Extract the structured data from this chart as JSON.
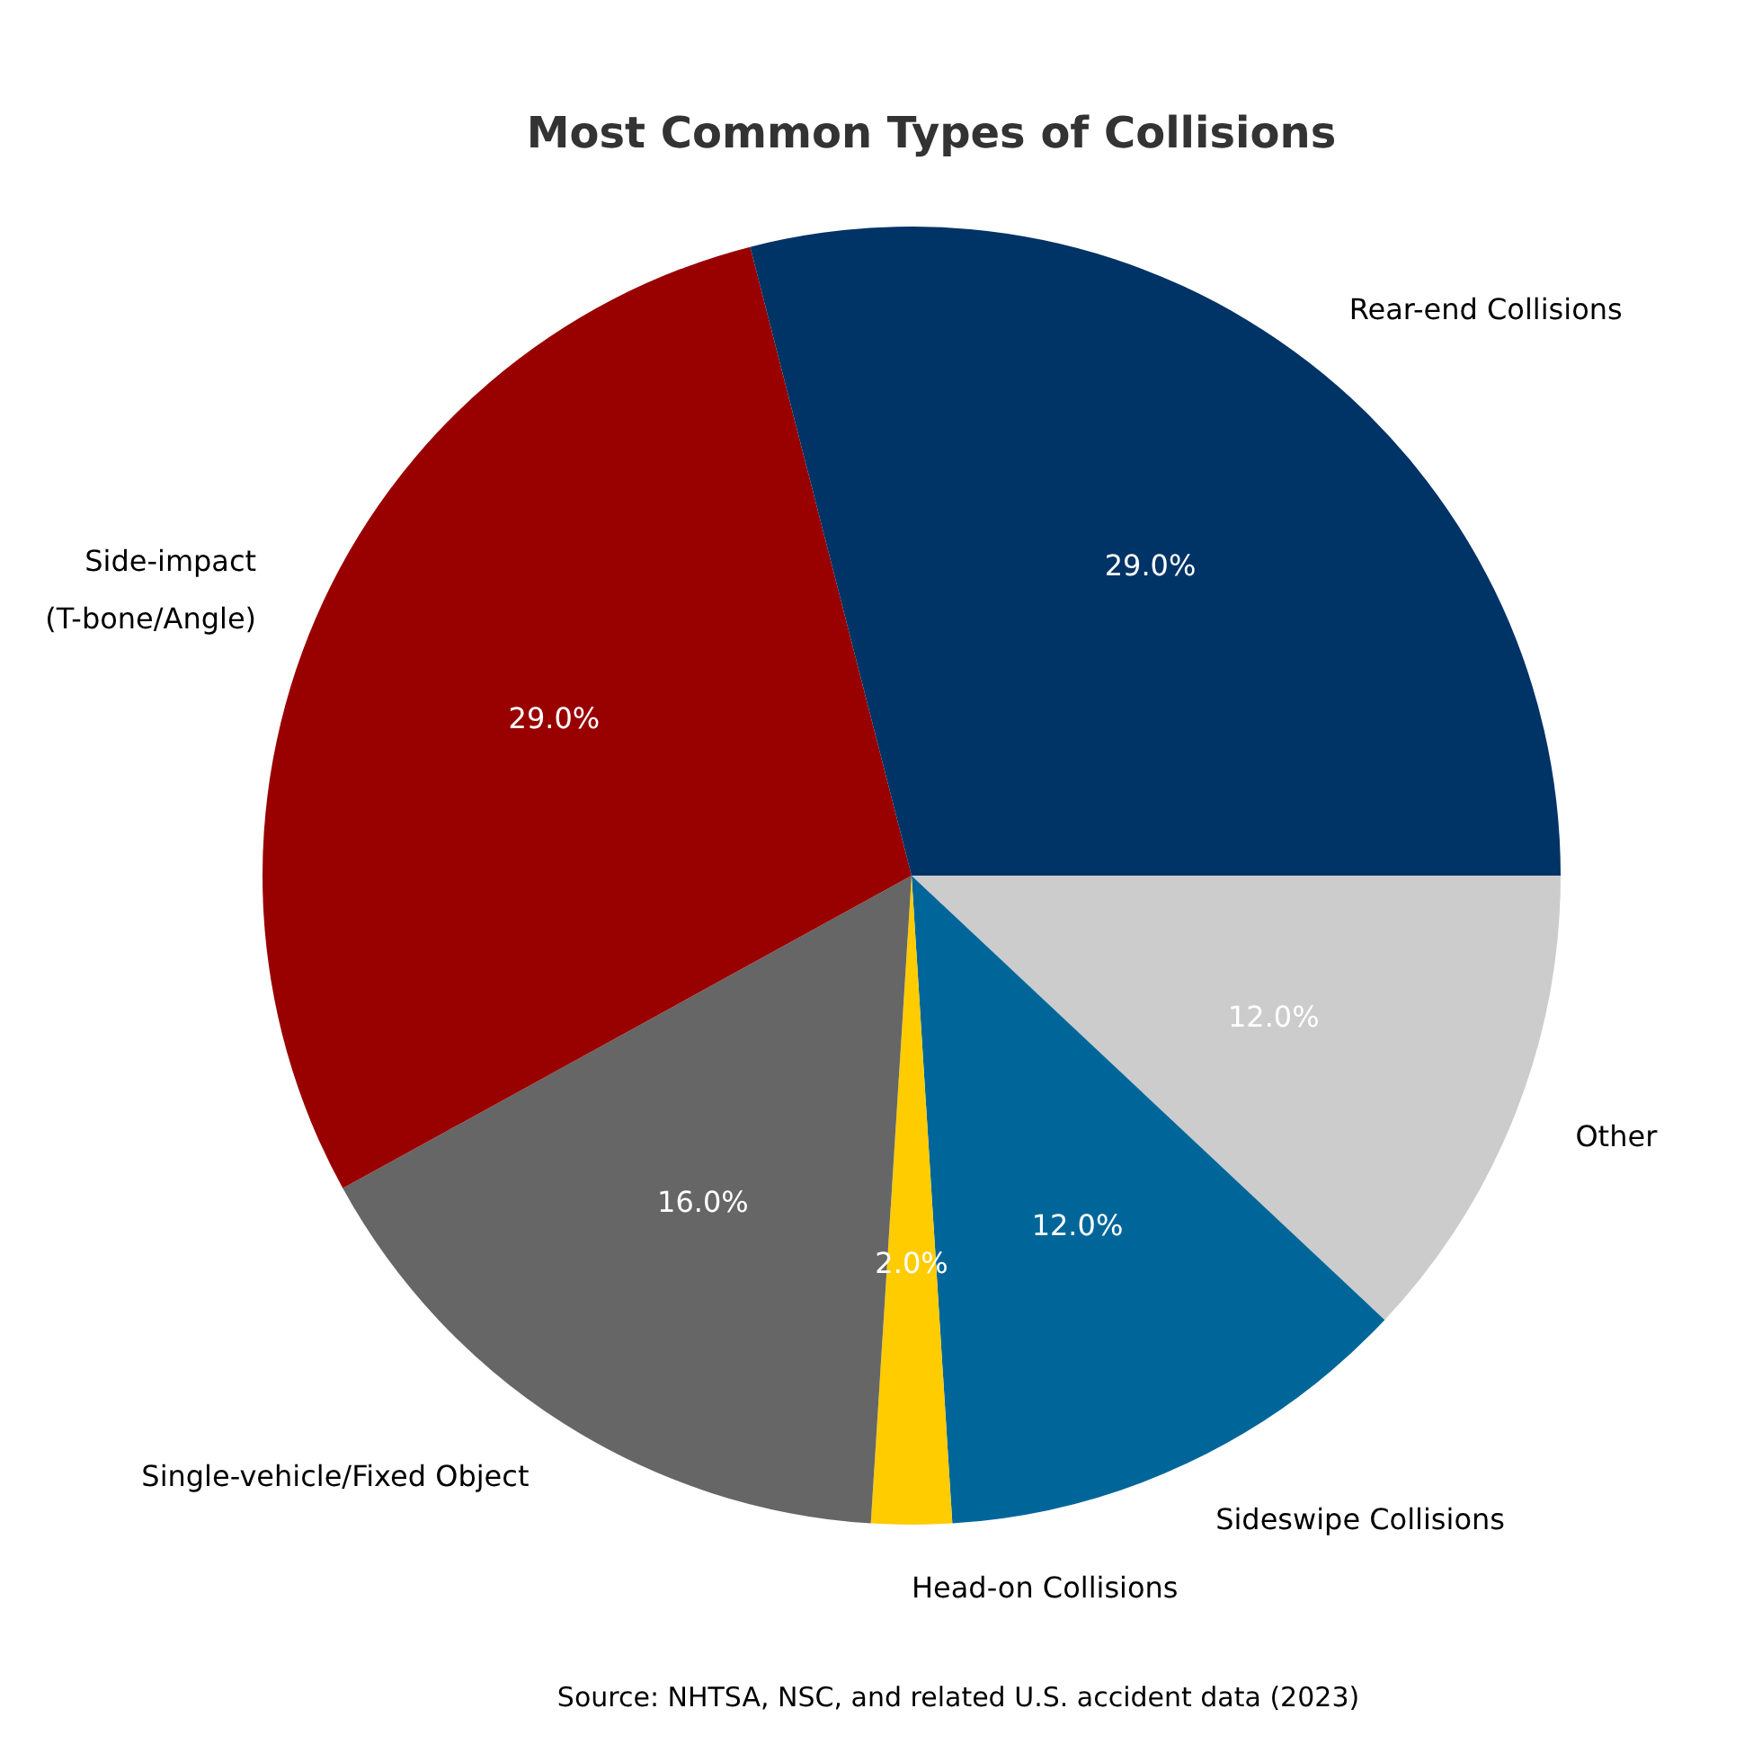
{
  "chart_data": {
    "type": "pie",
    "title": "Most Common Types of Collisions",
    "categories": [
      "Rear-end Collisions",
      "Side-impact\n(T-bone/Angle)",
      "Single-vehicle/Fixed Object",
      "Head-on Collisions",
      "Sideswipe Collisions",
      "Other"
    ],
    "values": [
      29,
      29,
      16,
      2,
      12,
      12
    ],
    "value_labels": [
      "29.0%",
      "29.0%",
      "16.0%",
      "2.0%",
      "12.0%",
      "12.0%"
    ],
    "colors": [
      "#003366",
      "#990000",
      "#666666",
      "#ffcc00",
      "#006699",
      "#cccccc"
    ],
    "annotations": [
      "Source: NHTSA, NSC, and related U.S. accident data (2023)"
    ]
  }
}
